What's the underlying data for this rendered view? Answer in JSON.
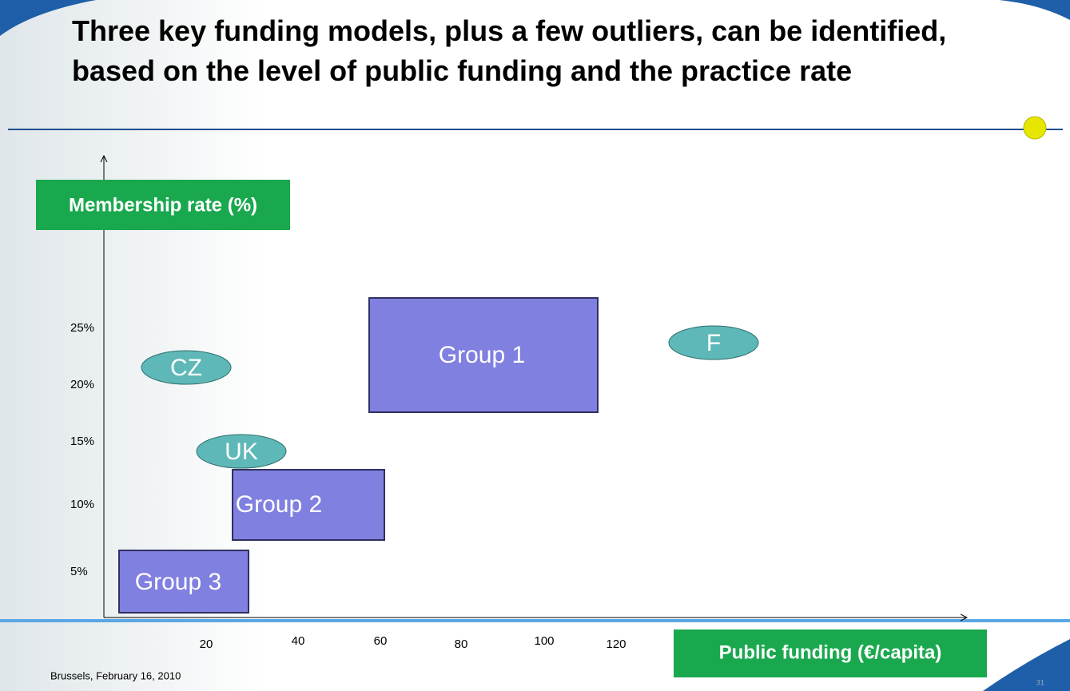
{
  "title": "Three key funding models, plus a few outliers, can be identified, based on the level of public funding and the practice rate",
  "y_axis_label": "Membership rate (%)",
  "x_axis_label": "Public funding (€/capita)",
  "y_ticks": [
    "25%",
    "20%",
    "15%",
    "10%",
    "5%"
  ],
  "x_ticks": [
    "20",
    "40",
    "60",
    "80",
    "100",
    "120"
  ],
  "groups": [
    "Group 1",
    "Group 2",
    "Group 3"
  ],
  "outliers": [
    "CZ",
    "UK",
    "F"
  ],
  "footer": "Brussels, February 16, 2010",
  "page_number": "31"
}
